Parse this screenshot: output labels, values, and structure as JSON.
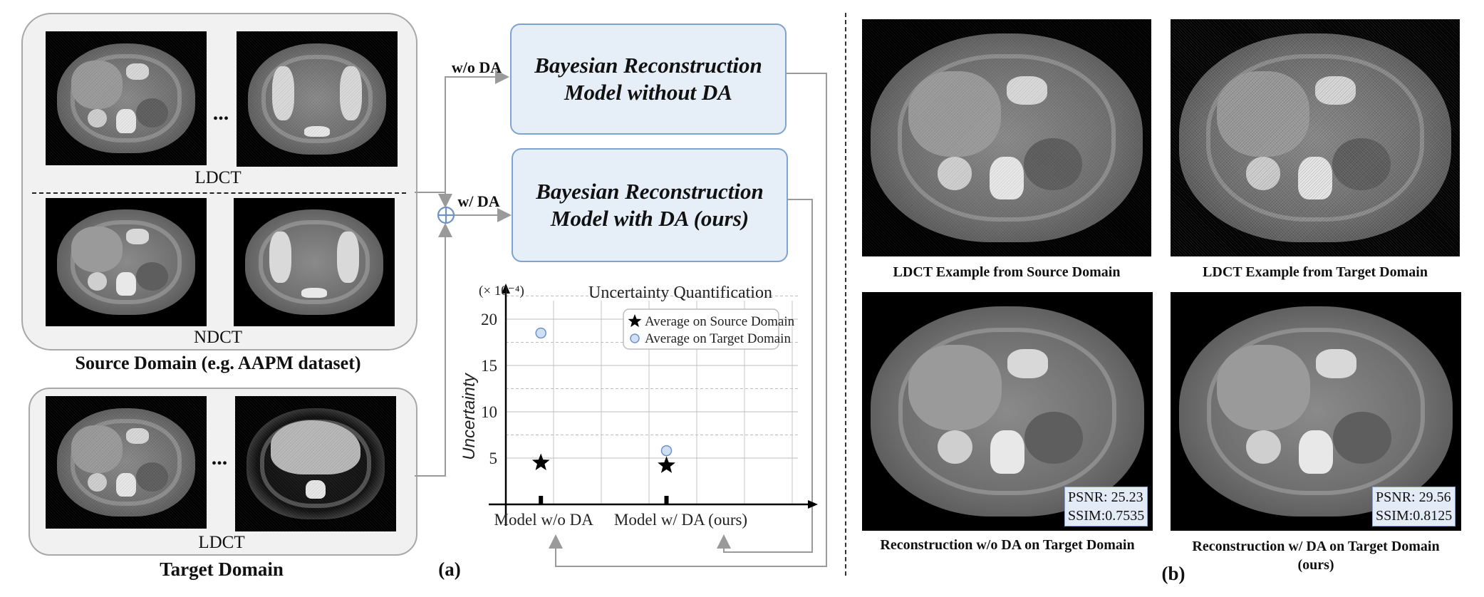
{
  "panel_a": {
    "source_ldct_caption": "LDCT",
    "source_ndct_caption": "NDCT",
    "source_group_caption": "Source Domain (e.g. AAPM dataset)",
    "target_ldct_caption": "LDCT",
    "target_group_caption": "Target Domain",
    "ellipsis": "...",
    "label_wo_da": "w/o DA",
    "label_w_da": "w/ DA",
    "model_without_da_line1": "Bayesian Reconstruction",
    "model_without_da_line2": "Model without DA",
    "model_with_da_line1": "Bayesian Reconstruction",
    "model_with_da_line2": "Model with DA (ours)",
    "panel_label": "(a)"
  },
  "panel_b": {
    "caption_ldct_source": "LDCT Example from Source Domain",
    "caption_ldct_target": "LDCT Example from Target Domain",
    "caption_recon_wo_da": "Reconstruction w/o DA on Target Domain",
    "caption_recon_w_da_line1": "Reconstruction w/ DA on Target Domain",
    "caption_recon_w_da_line2": "(ours)",
    "metric_wo_psnr": "PSNR: 25.23",
    "metric_wo_ssim": "SSIM:0.7535",
    "metric_w_psnr": "PSNR: 29.56",
    "metric_w_ssim": "SSIM:0.8125",
    "panel_label": "(b)"
  },
  "chart_data": {
    "type": "scatter",
    "title": "Uncertainty Quantification",
    "ylabel": "Uncertainty",
    "scale_note": "(× 10⁻⁴)",
    "categories": [
      "Model w/o DA",
      "Model w/ DA (ours)"
    ],
    "yticks": [
      "5",
      "10",
      "15",
      "20"
    ],
    "ylim": [
      0,
      22
    ],
    "grid": true,
    "legend_position": "top-right",
    "series": [
      {
        "name": "Average on Source Domain",
        "marker": "star",
        "color": "#000000",
        "values": [
          4.5,
          4.2
        ]
      },
      {
        "name": "Average on Target  Domain",
        "marker": "circle",
        "color": "#cfe0f5",
        "values": [
          18.5,
          5.8
        ]
      }
    ]
  }
}
